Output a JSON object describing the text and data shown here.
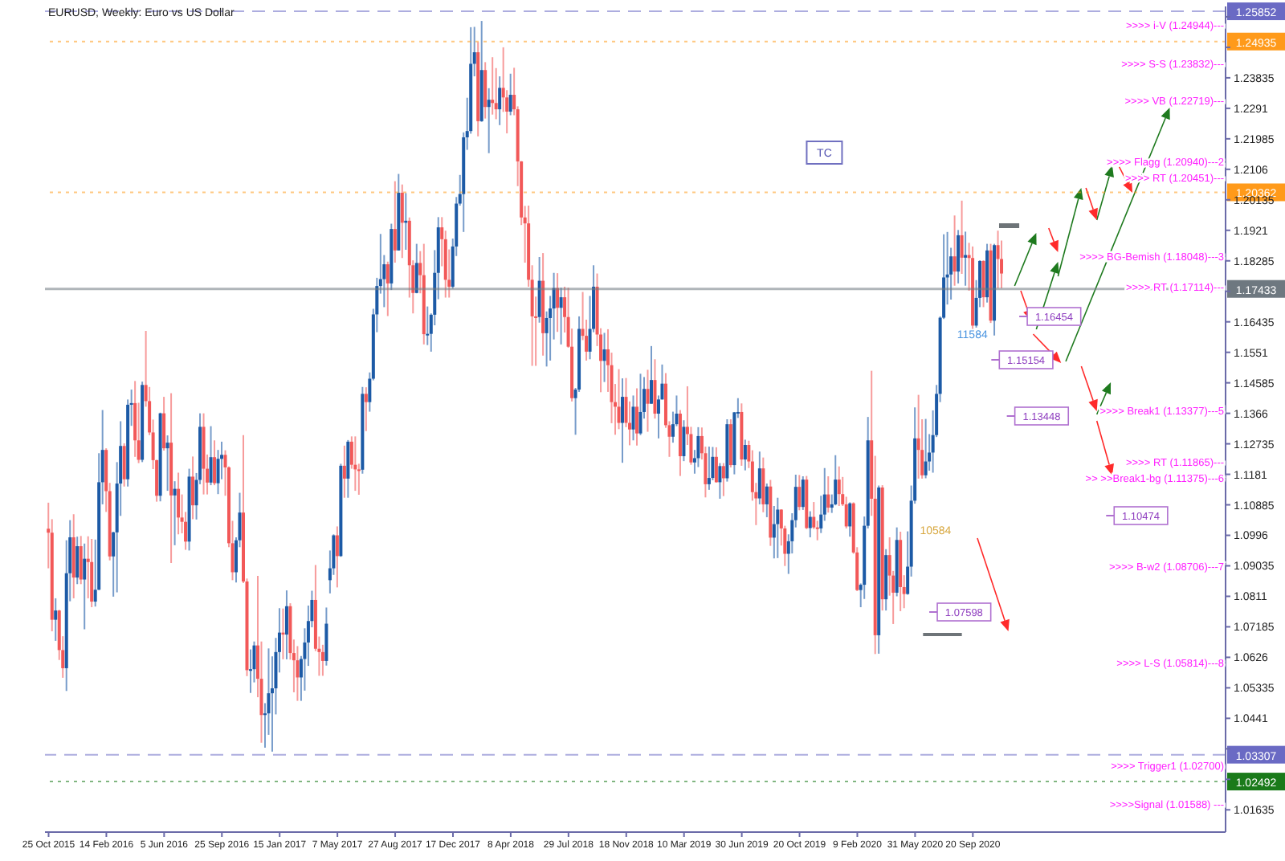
{
  "chart_data": {
    "type": "candlestick",
    "title": "EURUSD, Weekly:  Euro vs US Dollar",
    "x": [
      "2015-10-25",
      "2015-11-01",
      "2015-11-08",
      "2015-11-15",
      "2015-11-22",
      "2015-11-29",
      "2015-12-06",
      "2015-12-13",
      "2015-12-20",
      "2015-12-27",
      "2016-01-03",
      "2016-01-10",
      "2016-01-17",
      "2016-01-24",
      "2016-01-31",
      "2016-02-07",
      "2016-02-14",
      "2016-02-21",
      "2016-02-28",
      "2016-03-06",
      "2016-03-13",
      "2016-03-20",
      "2016-03-27",
      "2016-04-03",
      "2016-04-10",
      "2016-04-17",
      "2016-04-24",
      "2016-05-01",
      "2016-05-08",
      "2016-05-15",
      "2016-05-22",
      "2016-05-29",
      "2016-06-05",
      "2016-06-12",
      "2016-06-19",
      "2016-06-26",
      "2016-07-03",
      "2016-07-10",
      "2016-07-17",
      "2016-07-24",
      "2016-07-31",
      "2016-08-07",
      "2016-08-14",
      "2016-08-21",
      "2016-08-28",
      "2016-09-04",
      "2016-09-11",
      "2016-09-18",
      "2016-09-25",
      "2016-10-02",
      "2016-10-09",
      "2016-10-16",
      "2016-10-23",
      "2016-10-30",
      "2016-11-06",
      "2016-11-13",
      "2016-11-20",
      "2016-11-27",
      "2016-12-04",
      "2016-12-11",
      "2016-12-18",
      "2016-12-25",
      "2017-01-01",
      "2017-01-08",
      "2017-01-15",
      "2017-01-22",
      "2017-01-29",
      "2017-02-05",
      "2017-02-12",
      "2017-02-19",
      "2017-02-26",
      "2017-03-05",
      "2017-03-12",
      "2017-03-19",
      "2017-03-26",
      "2017-04-02",
      "2017-04-09",
      "2017-04-16",
      "2017-04-23",
      "2017-04-30",
      "2017-05-07",
      "2017-05-14",
      "2017-05-21",
      "2017-05-28",
      "2017-06-04",
      "2017-06-11",
      "2017-06-18",
      "2017-06-25",
      "2017-07-02",
      "2017-07-09",
      "2017-07-16",
      "2017-07-23",
      "2017-07-30",
      "2017-08-06",
      "2017-08-13",
      "2017-08-20",
      "2017-08-27",
      "2017-09-03",
      "2017-09-10",
      "2017-09-17",
      "2017-09-24",
      "2017-10-01",
      "2017-10-08",
      "2017-10-15",
      "2017-10-22",
      "2017-10-29",
      "2017-11-05",
      "2017-11-12",
      "2017-11-19",
      "2017-11-26",
      "2017-12-03",
      "2017-12-10",
      "2017-12-17",
      "2017-12-24",
      "2017-12-31",
      "2018-01-07",
      "2018-01-14",
      "2018-01-21",
      "2018-01-28",
      "2018-02-04",
      "2018-02-11",
      "2018-02-18",
      "2018-02-25",
      "2018-03-04",
      "2018-03-11",
      "2018-03-18",
      "2018-03-25",
      "2018-04-01",
      "2018-04-08",
      "2018-04-15",
      "2018-04-22",
      "2018-04-29",
      "2018-05-06",
      "2018-05-13",
      "2018-05-20",
      "2018-05-27",
      "2018-06-03",
      "2018-06-10",
      "2018-06-17",
      "2018-06-24",
      "2018-07-01",
      "2018-07-08",
      "2018-07-15",
      "2018-07-22",
      "2018-07-29",
      "2018-08-05",
      "2018-08-12",
      "2018-08-19",
      "2018-08-26",
      "2018-09-02",
      "2018-09-09",
      "2018-09-16",
      "2018-09-23",
      "2018-09-30",
      "2018-10-07",
      "2018-10-14",
      "2018-10-21",
      "2018-10-28",
      "2018-11-04",
      "2018-11-11",
      "2018-11-18",
      "2018-11-25",
      "2018-12-02",
      "2018-12-09",
      "2018-12-16",
      "2018-12-23",
      "2018-12-30",
      "2019-01-06",
      "2019-01-13",
      "2019-01-20",
      "2019-01-27",
      "2019-02-03",
      "2019-02-10",
      "2019-02-17",
      "2019-02-24",
      "2019-03-03",
      "2019-03-10",
      "2019-03-17",
      "2019-03-24",
      "2019-03-31",
      "2019-04-07",
      "2019-04-14",
      "2019-04-21",
      "2019-04-28",
      "2019-05-05",
      "2019-05-12",
      "2019-05-19",
      "2019-05-26",
      "2019-06-02",
      "2019-06-09",
      "2019-06-16",
      "2019-06-23",
      "2019-06-30",
      "2019-07-07",
      "2019-07-14",
      "2019-07-21",
      "2019-07-28",
      "2019-08-04",
      "2019-08-11",
      "2019-08-18",
      "2019-08-25",
      "2019-09-01",
      "2019-09-08",
      "2019-09-15",
      "2019-09-22",
      "2019-09-29",
      "2019-10-06",
      "2019-10-13",
      "2019-10-20",
      "2019-10-27",
      "2019-11-03",
      "2019-11-10",
      "2019-11-17",
      "2019-11-24",
      "2019-12-01",
      "2019-12-08",
      "2019-12-15",
      "2019-12-22",
      "2019-12-29",
      "2020-01-05",
      "2020-01-12",
      "2020-01-19",
      "2020-01-26",
      "2020-02-02",
      "2020-02-09",
      "2020-02-16",
      "2020-02-23",
      "2020-03-01",
      "2020-03-08",
      "2020-03-15",
      "2020-03-22",
      "2020-03-29",
      "2020-04-05",
      "2020-04-12",
      "2020-04-19",
      "2020-04-26",
      "2020-05-03",
      "2020-05-10",
      "2020-05-17",
      "2020-05-24",
      "2020-05-31",
      "2020-06-07",
      "2020-06-14",
      "2020-06-21",
      "2020-06-28",
      "2020-07-05",
      "2020-07-12",
      "2020-07-19",
      "2020-07-26",
      "2020-08-02",
      "2020-08-09",
      "2020-08-16",
      "2020-08-23",
      "2020-08-30",
      "2020-09-06",
      "2020-09-13",
      "2020-09-20",
      "2020-09-27",
      "2020-10-04",
      "2020-10-11",
      "2020-10-18",
      "2020-10-25",
      "2020-11-01",
      "2020-11-08",
      "2020-11-15"
    ],
    "ohlc": [
      [
        1.1016,
        1.1095,
        1.0896,
        1.1004
      ],
      [
        1.1004,
        1.1045,
        1.0705,
        1.074
      ],
      [
        1.074,
        1.0805,
        1.0676,
        1.0768
      ],
      [
        1.0768,
        1.077,
        1.0618,
        1.0648
      ],
      [
        1.0648,
        1.069,
        1.0564,
        1.0593
      ],
      [
        1.0593,
        1.0981,
        1.0524,
        1.0881
      ],
      [
        1.0881,
        1.1042,
        1.0796,
        1.099
      ],
      [
        1.099,
        1.106,
        1.0805,
        1.0868
      ],
      [
        1.0868,
        1.0992,
        1.0848,
        1.0963
      ],
      [
        1.0963,
        1.0994,
        1.0848,
        1.0862
      ],
      [
        1.0862,
        1.0971,
        1.0711,
        1.0925
      ],
      [
        1.0925,
        1.0993,
        1.0805,
        1.0915
      ],
      [
        1.0915,
        1.0985,
        1.0778,
        1.0795
      ],
      [
        1.0795,
        1.0983,
        1.078,
        1.0831
      ],
      [
        1.0831,
        1.1245,
        1.083,
        1.1157
      ],
      [
        1.1157,
        1.1376,
        1.109,
        1.1255
      ],
      [
        1.1255,
        1.126,
        1.1067,
        1.113
      ],
      [
        1.113,
        1.1155,
        1.092,
        1.0932
      ],
      [
        1.0932,
        1.1007,
        1.081,
        1.1005
      ],
      [
        1.1005,
        1.1218,
        1.0823,
        1.1153
      ],
      [
        1.1153,
        1.1342,
        1.1055,
        1.1267
      ],
      [
        1.1267,
        1.1275,
        1.1144,
        1.1166
      ],
      [
        1.1166,
        1.1408,
        1.1144,
        1.1392
      ],
      [
        1.1392,
        1.1438,
        1.1328,
        1.1397
      ],
      [
        1.1397,
        1.1464,
        1.1234,
        1.1284
      ],
      [
        1.1284,
        1.1398,
        1.1215,
        1.1225
      ],
      [
        1.1225,
        1.1462,
        1.1218,
        1.1452
      ],
      [
        1.1452,
        1.1616,
        1.1386,
        1.1403
      ],
      [
        1.1403,
        1.1446,
        1.13,
        1.1308
      ],
      [
        1.1308,
        1.1347,
        1.1197,
        1.1224
      ],
      [
        1.1224,
        1.1225,
        1.1098,
        1.1116
      ],
      [
        1.1116,
        1.1368,
        1.1099,
        1.1366
      ],
      [
        1.1366,
        1.1416,
        1.1253,
        1.126
      ],
      [
        1.126,
        1.1299,
        1.1131,
        1.1277
      ],
      [
        1.1277,
        1.1427,
        1.0912,
        1.1117
      ],
      [
        1.1117,
        1.116,
        1.0966,
        1.1137
      ],
      [
        1.1137,
        1.1186,
        1.0999,
        1.105
      ],
      [
        1.105,
        1.112,
        1.1002,
        1.1037
      ],
      [
        1.1037,
        1.1067,
        1.0952,
        1.0977
      ],
      [
        1.0977,
        1.1198,
        1.095,
        1.1174
      ],
      [
        1.1174,
        1.1235,
        1.1045,
        1.1087
      ],
      [
        1.1087,
        1.1185,
        1.1044,
        1.1164
      ],
      [
        1.1164,
        1.1366,
        1.1151,
        1.1325
      ],
      [
        1.1325,
        1.1366,
        1.112,
        1.1198
      ],
      [
        1.1198,
        1.1241,
        1.112,
        1.1156
      ],
      [
        1.1156,
        1.1327,
        1.1148,
        1.1233
      ],
      [
        1.1233,
        1.1284,
        1.1148,
        1.1154
      ],
      [
        1.1154,
        1.1255,
        1.1121,
        1.1228
      ],
      [
        1.1228,
        1.128,
        1.1166,
        1.124
      ],
      [
        1.124,
        1.1254,
        1.1116,
        1.1202
      ],
      [
        1.1202,
        1.1205,
        1.096,
        1.0972
      ],
      [
        1.0972,
        1.104,
        1.086,
        1.0884
      ],
      [
        1.0884,
        1.099,
        1.0853,
        1.0981
      ],
      [
        1.0981,
        1.1125,
        1.096,
        1.1065
      ],
      [
        1.1065,
        1.13,
        1.0851,
        1.0856
      ],
      [
        1.0856,
        1.0865,
        1.0569,
        1.0587
      ],
      [
        1.0587,
        1.065,
        1.0518,
        1.059
      ],
      [
        1.059,
        1.0674,
        1.055,
        1.0662
      ],
      [
        1.0662,
        1.0873,
        1.0505,
        1.0561
      ],
      [
        1.0561,
        1.0674,
        1.0367,
        1.0451
      ],
      [
        1.0451,
        1.0487,
        1.0352,
        1.0456
      ],
      [
        1.0456,
        1.0653,
        1.0391,
        1.0517
      ],
      [
        1.0517,
        1.0629,
        1.034,
        1.0532
      ],
      [
        1.0532,
        1.0685,
        1.0453,
        1.0642
      ],
      [
        1.0642,
        1.0775,
        1.058,
        1.0701
      ],
      [
        1.0701,
        1.0774,
        1.062,
        1.0695
      ],
      [
        1.0695,
        1.0829,
        1.062,
        1.0781
      ],
      [
        1.0781,
        1.079,
        1.0619,
        1.0639
      ],
      [
        1.0639,
        1.068,
        1.052,
        1.0617
      ],
      [
        1.0617,
        1.066,
        1.0494,
        1.0565
      ],
      [
        1.0565,
        1.063,
        1.0494,
        1.0621
      ],
      [
        1.0621,
        1.0714,
        1.0525,
        1.0671
      ],
      [
        1.0671,
        1.0783,
        1.06,
        1.0736
      ],
      [
        1.0736,
        1.0828,
        1.0717,
        1.08
      ],
      [
        1.08,
        1.0906,
        1.0645,
        1.0652
      ],
      [
        1.0652,
        1.0689,
        1.057,
        1.0642
      ],
      [
        1.0642,
        1.0664,
        1.057,
        1.0615
      ],
      [
        1.0615,
        1.0777,
        1.0601,
        1.0728
      ],
      [
        1.086,
        1.095,
        1.082,
        1.0896
      ],
      [
        1.0896,
        1.0999,
        1.0876,
        1.0996
      ],
      [
        1.0996,
        1.1023,
        1.0838,
        1.0933
      ],
      [
        1.0933,
        1.1213,
        1.0931,
        1.1207
      ],
      [
        1.1207,
        1.1268,
        1.111,
        1.1168
      ],
      [
        1.1168,
        1.1285,
        1.111,
        1.128
      ],
      [
        1.128,
        1.1296,
        1.1198,
        1.121
      ],
      [
        1.121,
        1.1296,
        1.1131,
        1.1196
      ],
      [
        1.1196,
        1.1213,
        1.1119,
        1.1195
      ],
      [
        1.1195,
        1.1446,
        1.1183,
        1.1425
      ],
      [
        1.1425,
        1.1445,
        1.1312,
        1.14
      ],
      [
        1.14,
        1.149,
        1.1371,
        1.1471
      ],
      [
        1.1471,
        1.1683,
        1.1466,
        1.1666
      ],
      [
        1.1666,
        1.1777,
        1.1612,
        1.1752
      ],
      [
        1.1752,
        1.191,
        1.1729,
        1.1773
      ],
      [
        1.1773,
        1.1846,
        1.1688,
        1.1818
      ],
      [
        1.1818,
        1.1826,
        1.1661,
        1.176
      ],
      [
        1.176,
        1.1941,
        1.174,
        1.1925
      ],
      [
        1.1925,
        1.207,
        1.1823,
        1.186
      ],
      [
        1.186,
        1.2092,
        1.186,
        1.2035
      ],
      [
        1.2035,
        1.206,
        1.1837,
        1.1944
      ],
      [
        1.1944,
        1.2034,
        1.1862,
        1.195
      ],
      [
        1.195,
        1.196,
        1.1717,
        1.1815
      ],
      [
        1.1815,
        1.183,
        1.1669,
        1.1731
      ],
      [
        1.1731,
        1.188,
        1.173,
        1.1822
      ],
      [
        1.1822,
        1.1858,
        1.173,
        1.1785
      ],
      [
        1.1785,
        1.188,
        1.1575,
        1.1606
      ],
      [
        1.1606,
        1.169,
        1.1573,
        1.1607
      ],
      [
        1.1607,
        1.1669,
        1.1553,
        1.1665
      ],
      [
        1.1665,
        1.1861,
        1.1633,
        1.1792
      ],
      [
        1.1792,
        1.1961,
        1.1712,
        1.193
      ],
      [
        1.193,
        1.1961,
        1.1812,
        1.1894
      ],
      [
        1.1894,
        1.192,
        1.1717,
        1.1771
      ],
      [
        1.1771,
        1.1863,
        1.1717,
        1.175
      ],
      [
        1.175,
        1.1896,
        1.1744,
        1.1872
      ],
      [
        1.1872,
        1.2022,
        1.1843,
        1.2002
      ],
      [
        1.2002,
        1.2089,
        1.1996,
        1.2031
      ],
      [
        1.2031,
        1.2218,
        1.1916,
        1.2203
      ],
      [
        1.2203,
        1.2323,
        1.2165,
        1.2222
      ],
      [
        1.2222,
        1.2537,
        1.2214,
        1.2426
      ],
      [
        1.2426,
        1.2538,
        1.2388,
        1.2461
      ],
      [
        1.2461,
        1.2492,
        1.2206,
        1.2252
      ],
      [
        1.2252,
        1.2556,
        1.225,
        1.2407
      ],
      [
        1.2407,
        1.2431,
        1.226,
        1.2295
      ],
      [
        1.2295,
        1.2352,
        1.2155,
        1.2317
      ],
      [
        1.2317,
        1.2446,
        1.2272,
        1.2307
      ],
      [
        1.2307,
        1.2413,
        1.2258,
        1.2288
      ],
      [
        1.2288,
        1.2388,
        1.224,
        1.2353
      ],
      [
        1.2353,
        1.2476,
        1.228,
        1.2324
      ],
      [
        1.2324,
        1.2346,
        1.2215,
        1.2281
      ],
      [
        1.2281,
        1.2396,
        1.227,
        1.2332
      ],
      [
        1.2332,
        1.2414,
        1.227,
        1.2288
      ],
      [
        1.2288,
        1.2297,
        1.2055,
        1.213
      ],
      [
        1.213,
        1.2131,
        1.1937,
        1.196
      ],
      [
        1.196,
        1.1995,
        1.1823,
        1.1942
      ],
      [
        1.1942,
        1.1996,
        1.175,
        1.1771
      ],
      [
        1.1771,
        1.1815,
        1.151,
        1.166
      ],
      [
        1.166,
        1.172,
        1.151,
        1.1658
      ],
      [
        1.1658,
        1.184,
        1.1641,
        1.1768
      ],
      [
        1.1768,
        1.1852,
        1.1541,
        1.1609
      ],
      [
        1.1609,
        1.1675,
        1.1508,
        1.1655
      ],
      [
        1.1655,
        1.1722,
        1.1526,
        1.1684
      ],
      [
        1.1684,
        1.1792,
        1.159,
        1.1746
      ],
      [
        1.1746,
        1.1791,
        1.1613,
        1.1686
      ],
      [
        1.1686,
        1.1747,
        1.1575,
        1.1718
      ],
      [
        1.1718,
        1.175,
        1.1611,
        1.1658
      ],
      [
        1.1658,
        1.1747,
        1.1565,
        1.1568
      ],
      [
        1.1568,
        1.1623,
        1.1402,
        1.1412
      ],
      [
        1.1412,
        1.1443,
        1.1301,
        1.1438
      ],
      [
        1.1438,
        1.166,
        1.1431,
        1.1622
      ],
      [
        1.1622,
        1.1734,
        1.1588,
        1.1601
      ],
      [
        1.1601,
        1.165,
        1.1526,
        1.1553
      ],
      [
        1.1553,
        1.1722,
        1.153,
        1.1622
      ],
      [
        1.1622,
        1.1815,
        1.1612,
        1.175
      ],
      [
        1.175,
        1.179,
        1.157,
        1.1605
      ],
      [
        1.1605,
        1.1624,
        1.143,
        1.1525
      ],
      [
        1.1525,
        1.161,
        1.1461,
        1.156
      ],
      [
        1.156,
        1.1621,
        1.1431,
        1.1512
      ],
      [
        1.1512,
        1.155,
        1.1336,
        1.14
      ],
      [
        1.14,
        1.1455,
        1.1301,
        1.1386
      ],
      [
        1.1386,
        1.15,
        1.1318,
        1.1337
      ],
      [
        1.1337,
        1.1472,
        1.1216,
        1.1416
      ],
      [
        1.1416,
        1.1473,
        1.1324,
        1.1337
      ],
      [
        1.1337,
        1.1402,
        1.1269,
        1.1317
      ],
      [
        1.1317,
        1.142,
        1.1284,
        1.1386
      ],
      [
        1.1386,
        1.1442,
        1.1268,
        1.1305
      ],
      [
        1.1305,
        1.1486,
        1.13,
        1.137
      ],
      [
        1.137,
        1.1476,
        1.135,
        1.144
      ],
      [
        1.144,
        1.1498,
        1.131,
        1.1395
      ],
      [
        1.1395,
        1.157,
        1.1395,
        1.1467
      ],
      [
        1.1467,
        1.153,
        1.135,
        1.1365
      ],
      [
        1.1365,
        1.142,
        1.129,
        1.1408
      ],
      [
        1.1408,
        1.1514,
        1.1408,
        1.1456
      ],
      [
        1.1456,
        1.1488,
        1.1322,
        1.133
      ],
      [
        1.133,
        1.1342,
        1.1234,
        1.1295
      ],
      [
        1.1295,
        1.1371,
        1.1277,
        1.1333
      ],
      [
        1.1333,
        1.142,
        1.1327,
        1.1365
      ],
      [
        1.1365,
        1.1376,
        1.1176,
        1.1236
      ],
      [
        1.1236,
        1.1345,
        1.1221,
        1.1325
      ],
      [
        1.1325,
        1.1448,
        1.127,
        1.1303
      ],
      [
        1.1303,
        1.1325,
        1.121,
        1.1217
      ],
      [
        1.1217,
        1.1255,
        1.1183,
        1.123
      ],
      [
        1.123,
        1.1324,
        1.1203,
        1.1297
      ],
      [
        1.1297,
        1.1323,
        1.1226,
        1.1245
      ],
      [
        1.1245,
        1.1265,
        1.1111,
        1.1151
      ],
      [
        1.1151,
        1.1265,
        1.1134,
        1.117
      ],
      [
        1.117,
        1.1264,
        1.1163,
        1.1234
      ],
      [
        1.1234,
        1.1263,
        1.1156,
        1.1157
      ],
      [
        1.1157,
        1.1215,
        1.1107,
        1.1206
      ],
      [
        1.1206,
        1.1215,
        1.1115,
        1.1169
      ],
      [
        1.1169,
        1.1348,
        1.1159,
        1.1333
      ],
      [
        1.1333,
        1.1348,
        1.1202,
        1.1209
      ],
      [
        1.1209,
        1.137,
        1.1181,
        1.1369
      ],
      [
        1.1369,
        1.1412,
        1.1352,
        1.137
      ],
      [
        1.137,
        1.1396,
        1.1207,
        1.1226
      ],
      [
        1.1226,
        1.1286,
        1.1193,
        1.127
      ],
      [
        1.127,
        1.1283,
        1.12,
        1.122
      ],
      [
        1.122,
        1.1254,
        1.1101,
        1.1127
      ],
      [
        1.1127,
        1.1155,
        1.1027,
        1.1108
      ],
      [
        1.1108,
        1.125,
        1.109,
        1.1199
      ],
      [
        1.1199,
        1.1232,
        1.1066,
        1.109
      ],
      [
        1.109,
        1.1153,
        1.1051,
        1.1144
      ],
      [
        1.1144,
        1.1164,
        1.0964,
        1.0989
      ],
      [
        1.0989,
        1.1085,
        1.0926,
        1.103
      ],
      [
        1.103,
        1.111,
        1.0927,
        1.1074
      ],
      [
        1.1074,
        1.1075,
        1.0965,
        1.1017
      ],
      [
        1.1017,
        1.1025,
        1.0903,
        1.094
      ],
      [
        1.094,
        1.0999,
        1.0879,
        1.0978
      ],
      [
        1.0978,
        1.1063,
        1.0941,
        1.1042
      ],
      [
        1.1042,
        1.118,
        1.102,
        1.1143
      ],
      [
        1.1143,
        1.1179,
        1.1072,
        1.1082
      ],
      [
        1.1082,
        1.1175,
        1.1073,
        1.1165
      ],
      [
        1.1165,
        1.1176,
        1.1015,
        1.1018
      ],
      [
        1.1018,
        1.1069,
        1.099,
        1.1052
      ],
      [
        1.1052,
        1.1097,
        1.1015,
        1.102
      ],
      [
        1.102,
        1.104,
        1.0981,
        1.1017
      ],
      [
        1.1017,
        1.1116,
        1.1003,
        1.1059
      ],
      [
        1.1059,
        1.12,
        1.104,
        1.112
      ],
      [
        1.112,
        1.1175,
        1.1065,
        1.108
      ],
      [
        1.108,
        1.112,
        1.1064,
        1.109
      ],
      [
        1.109,
        1.1239,
        1.1087,
        1.1165
      ],
      [
        1.1165,
        1.1205,
        1.1085,
        1.1121
      ],
      [
        1.1121,
        1.1173,
        1.1085,
        1.109
      ],
      [
        1.109,
        1.1113,
        1.1017,
        1.1023
      ],
      [
        1.1023,
        1.1096,
        1.0992,
        1.1093
      ],
      [
        1.1093,
        1.1096,
        1.094,
        1.0944
      ],
      [
        1.0944,
        1.096,
        1.0827,
        1.083
      ],
      [
        1.083,
        1.085,
        1.0778,
        1.0846
      ],
      [
        1.0846,
        1.1053,
        1.0803,
        1.1025
      ],
      [
        1.1025,
        1.1355,
        1.1017,
        1.1284
      ],
      [
        1.1284,
        1.1495,
        1.1055,
        1.1107
      ],
      [
        1.1107,
        1.1237,
        1.0636,
        1.0693
      ],
      [
        1.0693,
        1.1147,
        1.0637,
        1.1141
      ],
      [
        1.1141,
        1.1148,
        1.0768,
        1.0802
      ],
      [
        1.0802,
        1.0954,
        1.0768,
        1.0936
      ],
      [
        1.0936,
        1.099,
        1.0813,
        1.0874
      ],
      [
        1.0874,
        1.0888,
        1.0727,
        1.0822
      ],
      [
        1.0822,
        1.102,
        1.0811,
        1.0982
      ],
      [
        1.0982,
        1.1007,
        1.0766,
        1.0839
      ],
      [
        1.0839,
        1.0875,
        1.0775,
        1.0818
      ],
      [
        1.0818,
        1.1008,
        1.0816,
        1.0901
      ],
      [
        1.0901,
        1.1147,
        1.0871,
        1.1101
      ],
      [
        1.1101,
        1.1384,
        1.1092,
        1.129
      ],
      [
        1.129,
        1.1422,
        1.1168,
        1.1255
      ],
      [
        1.1255,
        1.1348,
        1.1168,
        1.1178
      ],
      [
        1.1178,
        1.1349,
        1.1169,
        1.122
      ],
      [
        1.122,
        1.1303,
        1.1192,
        1.1247
      ],
      [
        1.1247,
        1.1375,
        1.1186,
        1.13
      ],
      [
        1.13,
        1.1452,
        1.1294,
        1.1425
      ],
      [
        1.1425,
        1.166,
        1.14,
        1.1656
      ],
      [
        1.1656,
        1.1909,
        1.1652,
        1.1778
      ],
      [
        1.1778,
        1.1916,
        1.1696,
        1.1787
      ],
      [
        1.1787,
        1.1868,
        1.1711,
        1.1842
      ],
      [
        1.1842,
        1.1966,
        1.1753,
        1.1796
      ],
      [
        1.1796,
        1.1922,
        1.176,
        1.1906
      ],
      [
        1.1906,
        1.2011,
        1.1789,
        1.1838
      ],
      [
        1.1838,
        1.1917,
        1.1753,
        1.1846
      ],
      [
        1.1846,
        1.1883,
        1.1738,
        1.1837
      ],
      [
        1.1837,
        1.1872,
        1.1612,
        1.1632
      ],
      [
        1.1632,
        1.177,
        1.1626,
        1.1716
      ],
      [
        1.1716,
        1.183,
        1.1688,
        1.1828
      ],
      [
        1.1828,
        1.183,
        1.1688,
        1.1718
      ],
      [
        1.1718,
        1.188,
        1.1702,
        1.186
      ],
      [
        1.186,
        1.188,
        1.164,
        1.1647
      ],
      [
        1.1647,
        1.188,
        1.1602,
        1.1876
      ],
      [
        1.1876,
        1.192,
        1.1745,
        1.1834
      ],
      [
        1.1834,
        1.189,
        1.1745,
        1.179
      ]
    ],
    "colors": [
      "#f25858",
      "#f25858",
      "#1c5aa6",
      "#f25858",
      "#f25858",
      "#1c5aa6",
      "#1c5aa6",
      "#f25858",
      "#1c5aa6",
      "#f25858",
      "#1c5aa6",
      "#f25858",
      "#f25858",
      "#1c5aa6",
      "#1c5aa6",
      "#1c5aa6",
      "#f25858",
      "#f25858",
      "#1c5aa6",
      "#1c5aa6",
      "#1c5aa6",
      "#f25858",
      "#1c5aa6",
      "#1c5aa6",
      "#f25858",
      "#f25858",
      "#1c5aa6",
      "#f25858",
      "#f25858",
      "#f25858",
      "#f25858",
      "#1c5aa6",
      "#f25858",
      "#1c5aa6",
      "#f25858",
      "#1c5aa6",
      "#f25858",
      "#f25858",
      "#f25858",
      "#1c5aa6",
      "#f25858",
      "#1c5aa6",
      "#1c5aa6",
      "#f25858",
      "#f25858",
      "#1c5aa6",
      "#f25858",
      "#1c5aa6",
      "#1c5aa6",
      "#f25858",
      "#f25858",
      "#f25858",
      "#1c5aa6",
      "#1c5aa6",
      "#f25858",
      "#f25858",
      "#1c5aa6",
      "#1c5aa6",
      "#f25858",
      "#f25858",
      "#1c5aa6",
      "#1c5aa6",
      "#1c5aa6",
      "#1c5aa6",
      "#1c5aa6",
      "#f25858",
      "#1c5aa6",
      "#f25858",
      "#f25858",
      "#f25858",
      "#1c5aa6",
      "#1c5aa6",
      "#1c5aa6",
      "#1c5aa6",
      "#f25858",
      "#f25858",
      "#f25858",
      "#1c5aa6",
      "#1c5aa6",
      "#1c5aa6",
      "#f25858",
      "#1c5aa6",
      "#f25858",
      "#1c5aa6",
      "#f25858",
      "#f25858",
      "#f25858",
      "#1c5aa6",
      "#f25858",
      "#1c5aa6",
      "#1c5aa6",
      "#1c5aa6",
      "#1c5aa6",
      "#1c5aa6",
      "#f25858",
      "#1c5aa6",
      "#f25858",
      "#1c5aa6",
      "#f25858",
      "#1c5aa6",
      "#f25858",
      "#f25858",
      "#1c5aa6",
      "#f25858",
      "#f25858",
      "#1c5aa6",
      "#1c5aa6",
      "#1c5aa6",
      "#1c5aa6",
      "#f25858",
      "#f25858",
      "#f25858",
      "#1c5aa6",
      "#1c5aa6",
      "#1c5aa6",
      "#1c5aa6",
      "#1c5aa6",
      "#1c5aa6",
      "#1c5aa6",
      "#f25858",
      "#1c5aa6",
      "#f25858",
      "#1c5aa6",
      "#f25858",
      "#f25858",
      "#1c5aa6",
      "#f25858",
      "#f25858",
      "#1c5aa6",
      "#f25858",
      "#f25858",
      "#f25858",
      "#f25858",
      "#f25858",
      "#f25858",
      "#f25858",
      "#1c5aa6",
      "#f25858",
      "#1c5aa6",
      "#1c5aa6",
      "#1c5aa6",
      "#f25858",
      "#1c5aa6",
      "#f25858",
      "#f25858",
      "#f25858",
      "#1c5aa6",
      "#1c5aa6",
      "#f25858",
      "#f25858",
      "#1c5aa6",
      "#1c5aa6",
      "#f25858",
      "#f25858",
      "#1c5aa6",
      "#f25858",
      "#f25858",
      "#f25858",
      "#f25858",
      "#1c5aa6",
      "#f25858",
      "#f25858",
      "#1c5aa6",
      "#f25858",
      "#1c5aa6",
      "#1c5aa6",
      "#f25858",
      "#1c5aa6",
      "#f25858",
      "#1c5aa6",
      "#1c5aa6",
      "#f25858",
      "#f25858",
      "#1c5aa6",
      "#1c5aa6",
      "#f25858",
      "#1c5aa6",
      "#f25858",
      "#f25858",
      "#1c5aa6",
      "#1c5aa6",
      "#f25858",
      "#f25858",
      "#1c5aa6",
      "#1c5aa6",
      "#f25858",
      "#1c5aa6",
      "#f25858",
      "#1c5aa6",
      "#f25858",
      "#1c5aa6",
      "#1c5aa6",
      "#f25858",
      "#1c5aa6",
      "#f25858",
      "#f25858",
      "#f25858",
      "#1c5aa6",
      "#f25858",
      "#1c5aa6",
      "#f25858",
      "#1c5aa6",
      "#1c5aa6",
      "#f25858",
      "#f25858",
      "#1c5aa6",
      "#1c5aa6",
      "#1c5aa6",
      "#f25858",
      "#1c5aa6",
      "#f25858",
      "#1c5aa6",
      "#f25858",
      "#f25858",
      "#1c5aa6",
      "#1c5aa6",
      "#f25858",
      "#1c5aa6",
      "#1c5aa6",
      "#f25858",
      "#f25858",
      "#f25858",
      "#1c5aa6",
      "#f25858",
      "#f25858",
      "#1c5aa6",
      "#1c5aa6",
      "#1c5aa6",
      "#f25858",
      "#f25858",
      "#1c5aa6",
      "#f25858",
      "#1c5aa6",
      "#f25858",
      "#f25858",
      "#1c5aa6",
      "#f25858",
      "#f25858",
      "#1c5aa6",
      "#1c5aa6",
      "#1c5aa6",
      "#f25858",
      "#f25858",
      "#1c5aa6",
      "#1c5aa6",
      "#1c5aa6",
      "#1c5aa6",
      "#1c5aa6",
      "#1c5aa6",
      "#1c5aa6",
      "#1c5aa6",
      "#f25858",
      "#1c5aa6",
      "#f25858",
      "#1c5aa6",
      "#f25858",
      "#f25858",
      "#1c5aa6",
      "#1c5aa6",
      "#f25858",
      "#1c5aa6",
      "#f25858",
      "#1c5aa6",
      "#f25858",
      "#f25858"
    ],
    "xlim": [
      "2015-10-18",
      "2022-01-23"
    ],
    "xticks": [
      {
        "value": "2015-10-25",
        "label": "25 Oct 2015"
      },
      {
        "value": "2016-02-14",
        "label": "14 Feb 2016"
      },
      {
        "value": "2016-06-05",
        "label": "5 Jun 2016"
      },
      {
        "value": "2016-09-25",
        "label": "25 Sep 2016"
      },
      {
        "value": "2017-01-15",
        "label": "15 Jan 2017"
      },
      {
        "value": "2017-05-07",
        "label": "7 May 2017"
      },
      {
        "value": "2017-08-27",
        "label": "27 Aug 2017"
      },
      {
        "value": "2017-12-17",
        "label": "17 Dec 2017"
      },
      {
        "value": "2018-04-08",
        "label": "8 Apr 2018"
      },
      {
        "value": "2018-07-29",
        "label": "29 Jul 2018"
      },
      {
        "value": "2018-11-18",
        "label": "18 Nov 2018"
      },
      {
        "value": "2019-03-10",
        "label": "10 Mar 2019"
      },
      {
        "value": "2019-06-30",
        "label": "30 Jun 2019"
      },
      {
        "value": "2019-10-20",
        "label": "20 Oct 2019"
      },
      {
        "value": "2020-02-09",
        "label": "9 Feb 2020"
      },
      {
        "value": "2020-05-31",
        "label": "31 May 2020"
      },
      {
        "value": "2020-09-20",
        "label": "20 Sep 2020"
      }
    ],
    "ylim": [
      1.0096,
      1.26
    ],
    "yticks": [
      {
        "value": 1.25685,
        "label": null
      },
      {
        "value": 1.2476,
        "label": null
      },
      1.23835,
      1.2291,
      1.21985,
      1.2106,
      1.20135,
      1.1921,
      1.18285,
      {
        "value": 1.1736,
        "label": null
      },
      1.16435,
      1.1551,
      1.14585,
      1.1366,
      1.12735,
      1.1181,
      1.10885,
      1.0996,
      1.09035,
      1.0811,
      1.07185,
      1.0626,
      1.05335,
      1.0441,
      {
        "value": 1.03485,
        "label": null
      },
      {
        "value": 1.0256,
        "label": null
      },
      1.01635
    ],
    "ref_lines": [
      {
        "axis": "y",
        "value": 1.25852,
        "label": "1.25852",
        "color": "#6a6ac4",
        "line_style": "dashed"
      },
      {
        "axis": "y",
        "value": 1.24935,
        "label": "1.24935",
        "color": "#ff9a1a",
        "line_style": "dotted"
      },
      {
        "axis": "y",
        "value": 1.20362,
        "label": "1.20362",
        "color": "#ff9a1a",
        "line_style": "dotted"
      },
      {
        "axis": "y",
        "value": 1.17433,
        "label": "1.17433",
        "color": "#6e7880",
        "line_style": "solid"
      },
      {
        "axis": "y",
        "value": 1.03307,
        "label": "1.03307",
        "color": "#6a6ac4",
        "line_style": "dashed"
      },
      {
        "axis": "y",
        "value": 1.02492,
        "label": "1.02492",
        "color": "#1a7a1a",
        "line_style": "dotted"
      }
    ],
    "annotations": [
      "TC",
      ">>>> i-V (1.24944)---",
      ">>>> S-S (1.23832)---",
      ">>>> VB (1.22719)---",
      ">>>> Flagg (1.20940)---2",
      ">>>> RT (1.20451)---",
      ">>>> BG-Bemish (1.18048)---3",
      ">>>> RT (1.17114)---",
      ">>>> Break1 (1.13377)---5",
      ">>>> RT (1.11865)---",
      ">> >>Break1-bg (1.11375)---6",
      ">>>> B-w2 (1.08706)---7",
      ">>>> L-S (1.05814)---8",
      ">>>> Trigger1 (1.02700)",
      ">>>>Signal (1.01588) ---",
      "1.16454",
      "1.15154",
      "1.13448",
      "1.10474",
      "1.07598",
      "11584",
      "10584"
    ]
  }
}
